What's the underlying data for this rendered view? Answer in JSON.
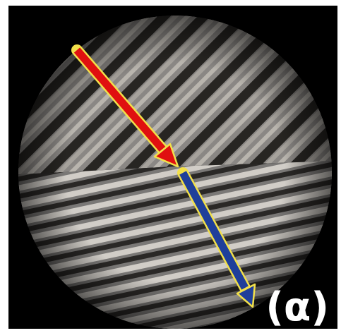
{
  "figure": {
    "panel_label": "(α)"
  },
  "colors": {
    "background": "#000000",
    "upper_arrow": "#e01010",
    "lower_arrow": "#1f3f9a",
    "arrow_outline": "#f2e04a",
    "label": "#ffffff"
  },
  "icons": {
    "upper": "red-arrow-icon",
    "lower": "blue-arrow-icon"
  }
}
